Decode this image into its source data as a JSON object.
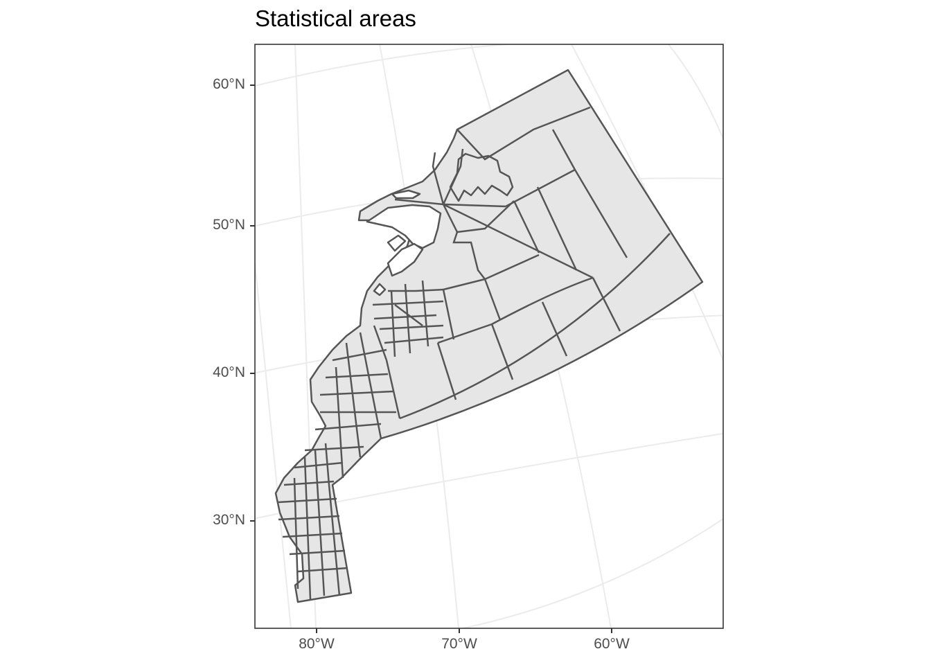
{
  "title": "Statistical areas",
  "map": {
    "projection": "conic",
    "lon_range": [
      -82,
      -56
    ],
    "lat_range": [
      24,
      62
    ],
    "fill_color": "#e6e6e6",
    "stroke_color": "#555555",
    "graticule_color": "#ebebeb",
    "grid": true
  },
  "axes": {
    "y_ticks": [
      "60°N",
      "50°N",
      "40°N",
      "30°N"
    ],
    "x_ticks": [
      "80°W",
      "70°W",
      "60°W"
    ]
  }
}
